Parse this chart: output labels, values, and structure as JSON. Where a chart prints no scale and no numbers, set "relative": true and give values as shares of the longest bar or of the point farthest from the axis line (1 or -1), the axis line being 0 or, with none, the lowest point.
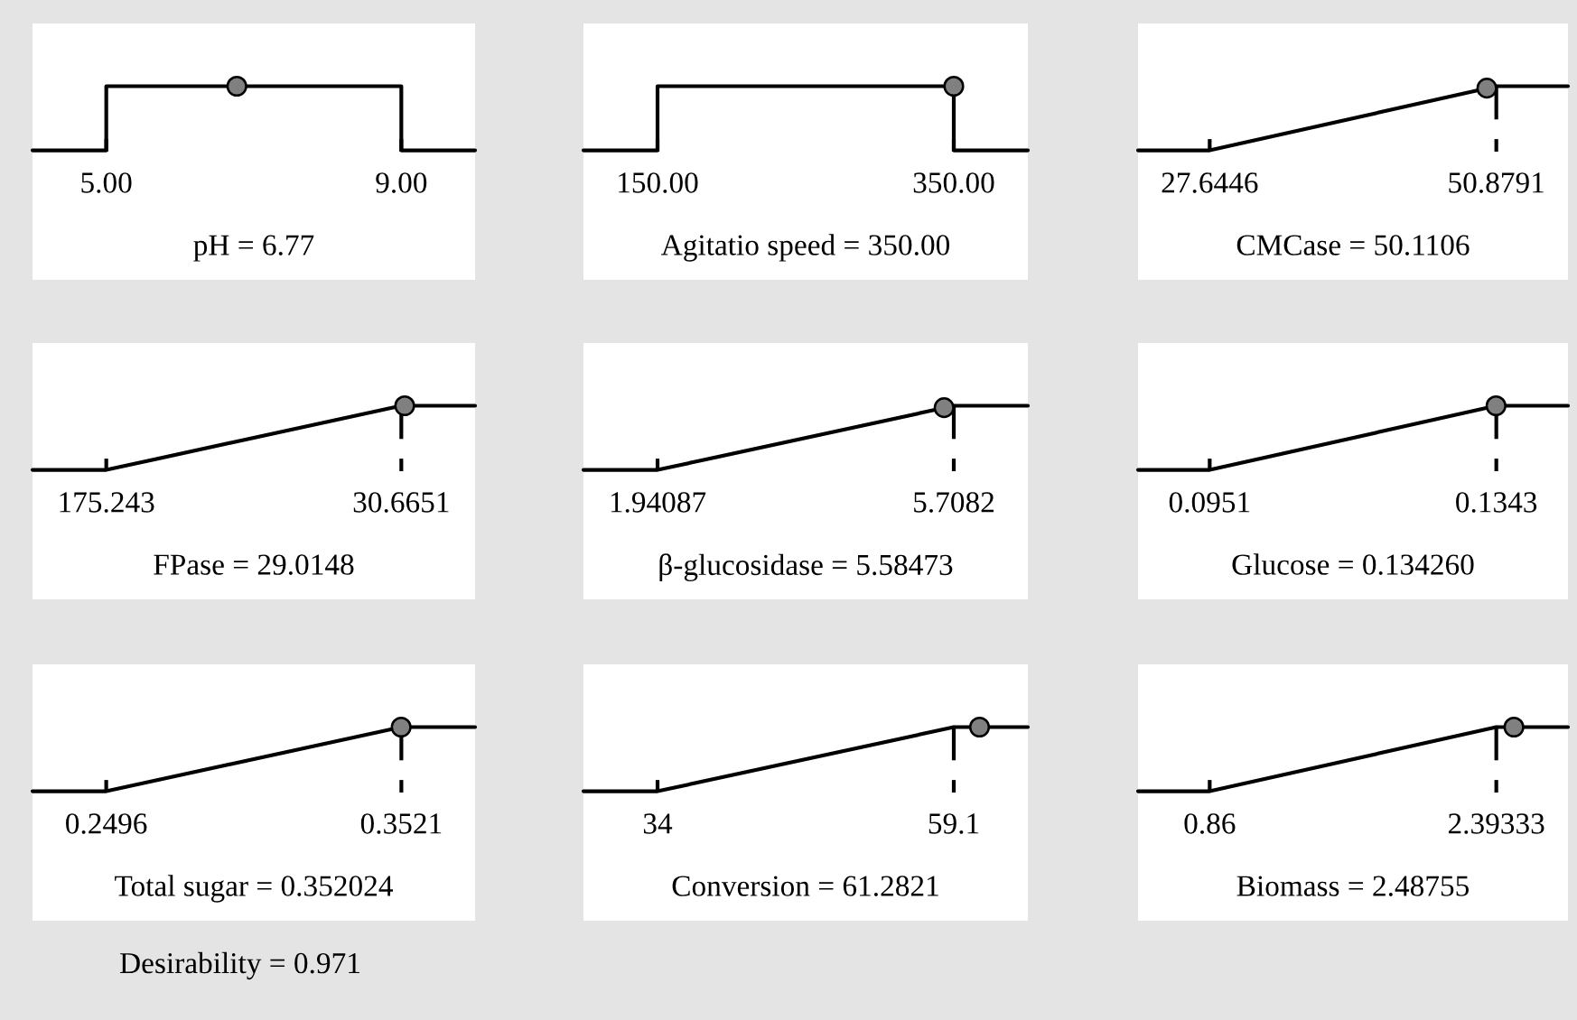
{
  "chart_data": [
    {
      "type": "line",
      "xlabel": "pH = 6.77",
      "relative": true,
      "xlim": [
        4,
        10
      ],
      "xticks": [
        {
          "value": 5,
          "label": "5.00"
        },
        {
          "value": 9,
          "label": "9.00"
        }
      ],
      "tick_labels": "x",
      "series": [
        {
          "type": "line",
          "color": "#000000",
          "x": [
            4,
            5,
            5,
            9,
            9,
            10
          ],
          "values": [
            0,
            0,
            1,
            1,
            0,
            0
          ]
        },
        {
          "type": "scatter",
          "color": "#808080",
          "x": [
            6.77
          ],
          "values": [
            1
          ]
        }
      ]
    },
    {
      "type": "line",
      "xlabel": "Agitatio speed = 350.00",
      "relative": true,
      "xlim": [
        100,
        400
      ],
      "xticks": [
        {
          "value": 150,
          "label": "150.00"
        },
        {
          "value": 350,
          "label": "350.00"
        }
      ],
      "tick_labels": "x",
      "series": [
        {
          "type": "line",
          "color": "#000000",
          "x": [
            100,
            150,
            150,
            350,
            350,
            400
          ],
          "values": [
            0,
            0,
            1,
            1,
            0,
            0
          ]
        },
        {
          "type": "scatter",
          "color": "#808080",
          "x": [
            350
          ],
          "values": [
            1
          ]
        }
      ]
    },
    {
      "type": "line",
      "xlabel": "CMCase = 50.1106",
      "relative": true,
      "xlim": [
        21.836,
        56.688
      ],
      "xticks": [
        27.6446,
        50.8791
      ],
      "tick_labels": "x",
      "ref_lines": [
        {
          "axis": "x",
          "value": 50.8791,
          "color": "#000000"
        }
      ],
      "series": [
        {
          "type": "line",
          "color": "#000000",
          "x": [
            21.836,
            27.6446,
            50.8791,
            56.688
          ],
          "values": [
            0,
            0,
            1,
            1
          ]
        },
        {
          "type": "scatter",
          "color": "#808080",
          "x": [
            50.1106
          ],
          "values": [
            0.97
          ]
        }
      ]
    },
    {
      "type": "line",
      "xlabel": "FPase = 29.0148",
      "relative": true,
      "xlim": [
        211.387,
        -5.479
      ],
      "xticks": [
        175.243,
        30.6651
      ],
      "tick_labels": "x",
      "ref_lines": [
        {
          "axis": "x",
          "value": 30.6651,
          "color": "#000000"
        }
      ],
      "series": [
        {
          "type": "line",
          "color": "#000000",
          "x": [
            211.387,
            175.243,
            30.6651,
            -5.479
          ],
          "values": [
            0,
            0,
            1,
            1
          ]
        },
        {
          "type": "scatter",
          "color": "#808080",
          "x": [
            29.0148
          ],
          "values": [
            1
          ]
        }
      ]
    },
    {
      "type": "line",
      "xlabel": "β-glucosidase = 5.58473",
      "relative": true,
      "xlim": [
        0.999,
        6.65
      ],
      "xticks": [
        1.94087,
        5.7082
      ],
      "tick_labels": "x",
      "ref_lines": [
        {
          "axis": "x",
          "value": 5.7082,
          "color": "#000000"
        }
      ],
      "series": [
        {
          "type": "line",
          "color": "#000000",
          "x": [
            0.999,
            1.94087,
            5.7082,
            6.65
          ],
          "values": [
            0,
            0,
            1,
            1
          ]
        },
        {
          "type": "scatter",
          "color": "#808080",
          "x": [
            5.58473
          ],
          "values": [
            0.97
          ]
        }
      ]
    },
    {
      "type": "line",
      "xlabel": "Glucose = 0.134260",
      "relative": true,
      "xlim": [
        0.0853,
        0.1441
      ],
      "xticks": [
        0.0951,
        0.1343
      ],
      "tick_labels": "x",
      "ref_lines": [
        {
          "axis": "x",
          "value": 0.1343,
          "color": "#000000"
        }
      ],
      "series": [
        {
          "type": "line",
          "color": "#000000",
          "x": [
            0.0853,
            0.0951,
            0.1343,
            0.1441
          ],
          "values": [
            0,
            0,
            1,
            1
          ]
        },
        {
          "type": "scatter",
          "color": "#808080",
          "x": [
            0.13426
          ],
          "values": [
            1
          ]
        }
      ]
    },
    {
      "type": "line",
      "xlabel": "Total sugar = 0.352024",
      "relative": true,
      "xlim": [
        0.224,
        0.3777
      ],
      "xticks": [
        0.2496,
        0.3521
      ],
      "tick_labels": "x",
      "ref_lines": [
        {
          "axis": "x",
          "value": 0.3521,
          "color": "#000000"
        }
      ],
      "series": [
        {
          "type": "line",
          "color": "#000000",
          "x": [
            0.224,
            0.2496,
            0.3521,
            0.3777
          ],
          "values": [
            0,
            0,
            1,
            1
          ]
        },
        {
          "type": "scatter",
          "color": "#808080",
          "x": [
            0.352024
          ],
          "values": [
            1
          ]
        }
      ]
    },
    {
      "type": "line",
      "xlabel": "Conversion = 61.2821",
      "relative": true,
      "xlim": [
        27.725,
        65.375
      ],
      "xticks": [
        34,
        59.1
      ],
      "tick_labels": "x",
      "ref_lines": [
        {
          "axis": "x",
          "value": 59.1,
          "color": "#000000"
        }
      ],
      "series": [
        {
          "type": "line",
          "color": "#000000",
          "x": [
            27.725,
            34,
            59.1,
            65.375
          ],
          "values": [
            0,
            0,
            1,
            1
          ]
        },
        {
          "type": "scatter",
          "color": "#808080",
          "x": [
            61.2821
          ],
          "values": [
            1
          ]
        }
      ]
    },
    {
      "type": "line",
      "xlabel": "Biomass = 2.48755",
      "relative": true,
      "xlim": [
        0.4767,
        2.7767
      ],
      "xticks": [
        0.86,
        2.39333
      ],
      "tick_labels": "x",
      "ref_lines": [
        {
          "axis": "x",
          "value": 2.39333,
          "color": "#000000"
        }
      ],
      "series": [
        {
          "type": "line",
          "color": "#000000",
          "x": [
            0.4767,
            0.86,
            2.39333,
            2.7767
          ],
          "values": [
            0,
            0,
            1,
            1
          ]
        },
        {
          "type": "scatter",
          "color": "#808080",
          "x": [
            2.48755
          ],
          "values": [
            1
          ]
        }
      ]
    },
    {
      "type": "other",
      "title": "Desirability = 0.971"
    }
  ]
}
